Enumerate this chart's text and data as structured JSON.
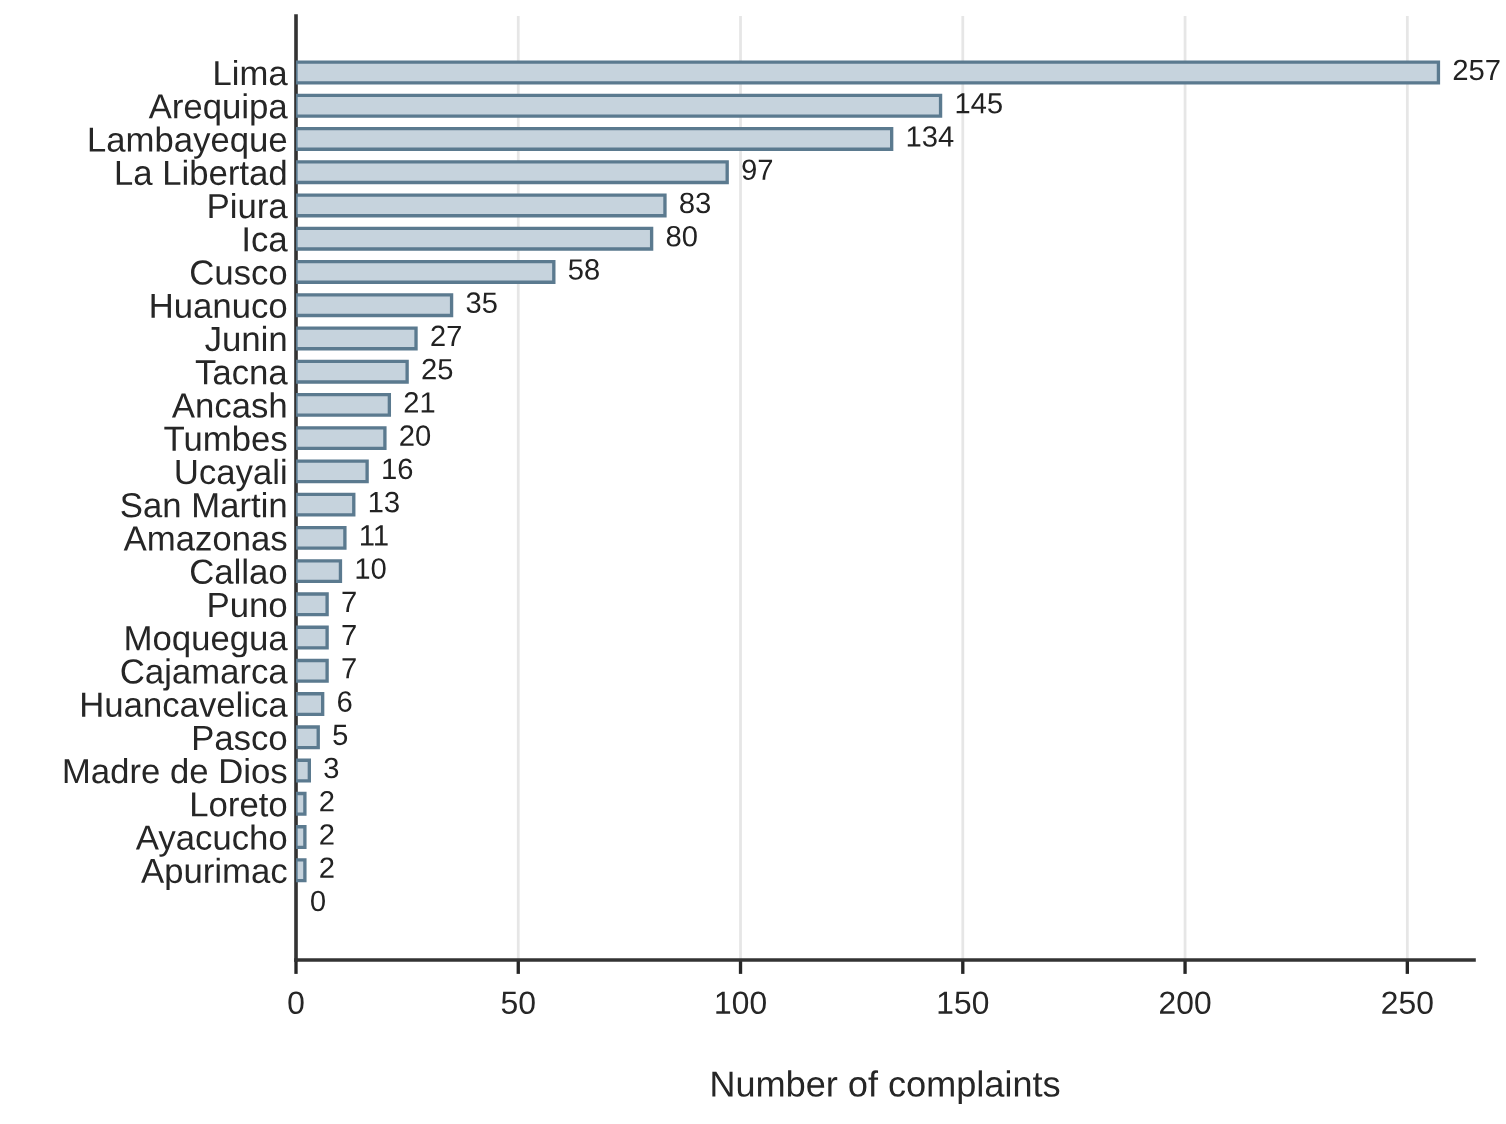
{
  "chart_data": {
    "type": "bar",
    "orientation": "horizontal",
    "xlabel": "Number of complaints",
    "categories": [
      "Lima",
      "Arequipa",
      "Lambayeque",
      "La Libertad",
      "Piura",
      "Ica",
      "Cusco",
      "Huanuco",
      "Junin",
      "Tacna",
      "Ancash",
      "Tumbes",
      "Ucayali",
      "San Martin",
      "Amazonas",
      "Callao",
      "Puno",
      "Moquegua",
      "Cajamarca",
      "Huancavelica",
      "Pasco",
      "Madre de Dios",
      "Loreto",
      "Ayacucho",
      "Apurimac",
      null
    ],
    "values": [
      257,
      145,
      134,
      97,
      83,
      80,
      58,
      35,
      27,
      25,
      21,
      20,
      16,
      13,
      11,
      10,
      7,
      7,
      7,
      6,
      5,
      3,
      2,
      2,
      2,
      0
    ],
    "color": "#c6d3dd",
    "xlim": [
      0,
      265
    ],
    "xticks": [
      0,
      50,
      100,
      150,
      200,
      250
    ],
    "grid": "x",
    "data_labels": true
  }
}
